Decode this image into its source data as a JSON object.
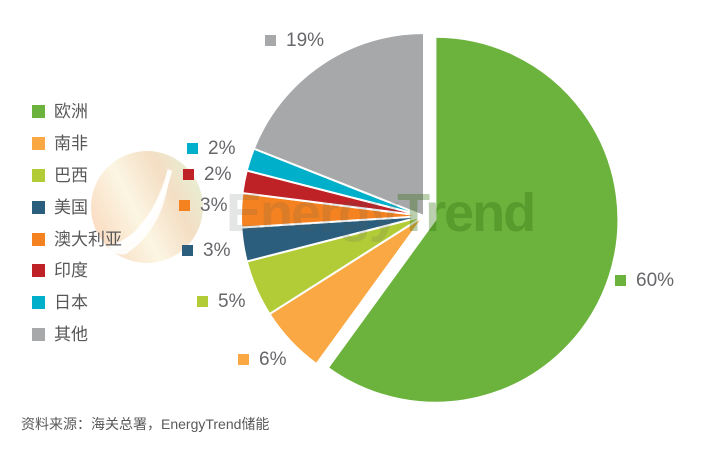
{
  "chart_data": {
    "type": "pie",
    "unit": "%",
    "direction": "clockwise",
    "start_angle_deg": 0,
    "legend_position": "left",
    "series": [
      {
        "name": "欧洲",
        "value": 60,
        "label": "60%",
        "color": "#6CB33E",
        "exploded": true
      },
      {
        "name": "南非",
        "value": 6,
        "label": "6%",
        "color": "#FAA843",
        "exploded": false
      },
      {
        "name": "巴西",
        "value": 5,
        "label": "5%",
        "color": "#B2CC38",
        "exploded": false
      },
      {
        "name": "美国",
        "value": 3,
        "label": "3%",
        "color": "#2B5E7D",
        "exploded": false
      },
      {
        "name": "澳大利亚",
        "value": 3,
        "label": "3%",
        "color": "#F58220",
        "exploded": false
      },
      {
        "name": "印度",
        "value": 2,
        "label": "2%",
        "color": "#BE2126",
        "exploded": false
      },
      {
        "name": "日本",
        "value": 2,
        "label": "2%",
        "color": "#00B0CA",
        "exploded": false
      },
      {
        "name": "其他",
        "value": 19,
        "label": "19%",
        "color": "#A7A8AA",
        "exploded": false
      }
    ]
  },
  "watermark": {
    "logo": "energytrend-leaf-logo",
    "text_part1": "Energy",
    "text_part2": "Trend",
    "brand_gray": "#A7A9AC",
    "brand_green": "#6CB33E"
  },
  "footer": {
    "source_text": "资料来源：海关总署，EnergyTrend储能"
  }
}
